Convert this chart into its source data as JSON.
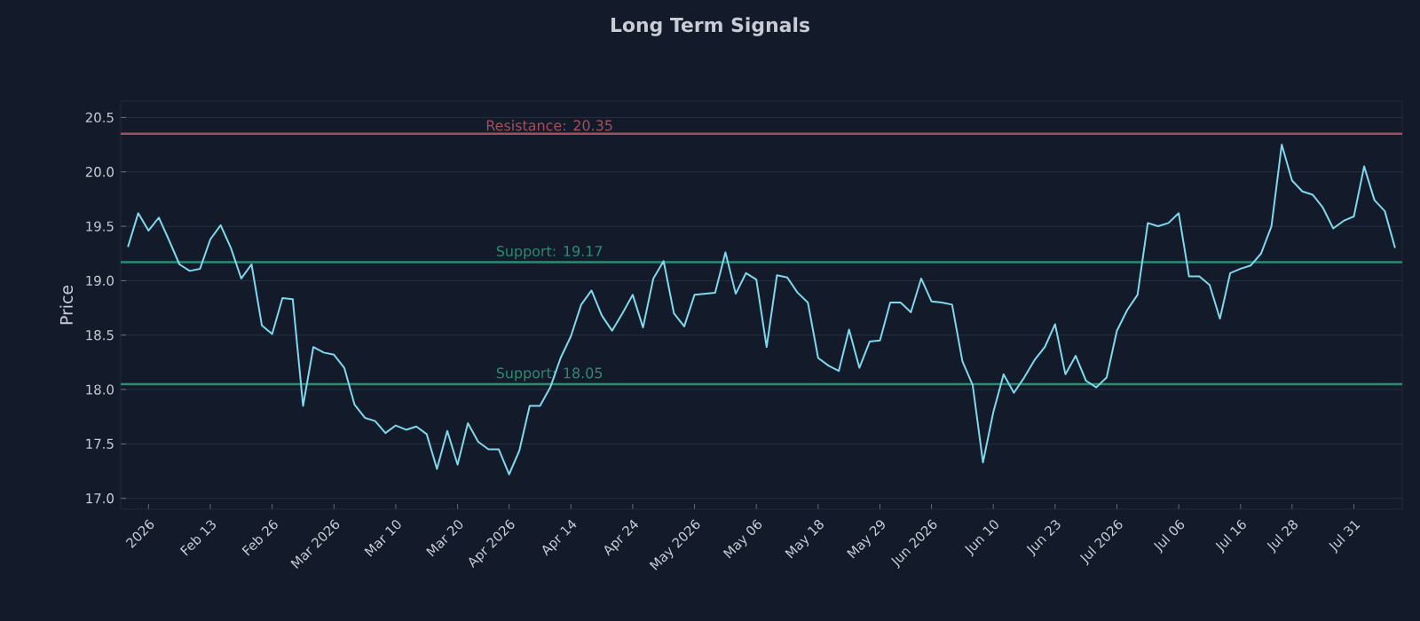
{
  "chart_data": {
    "type": "line",
    "title": "Long Term Signals",
    "ylabel": "Price",
    "categories": [
      null,
      null,
      "2026",
      null,
      null,
      null,
      null,
      null,
      "Feb 13",
      null,
      null,
      null,
      null,
      null,
      "Feb 26",
      null,
      null,
      null,
      null,
      null,
      "Mar 2026",
      null,
      null,
      null,
      null,
      null,
      "Mar 10",
      null,
      null,
      null,
      null,
      null,
      "Mar 20",
      null,
      null,
      null,
      null,
      "Apr 2026",
      null,
      null,
      null,
      null,
      null,
      "Apr 14",
      null,
      null,
      null,
      null,
      null,
      "Apr 24",
      null,
      null,
      null,
      null,
      null,
      "May 2026",
      null,
      null,
      null,
      null,
      null,
      "May 06",
      null,
      null,
      null,
      null,
      null,
      "May 18",
      null,
      null,
      null,
      null,
      null,
      "May 29",
      null,
      null,
      null,
      null,
      "Jun 2026",
      null,
      null,
      null,
      null,
      null,
      "Jun 10",
      null,
      null,
      null,
      null,
      null,
      "Jun 23",
      null,
      null,
      null,
      null,
      null,
      "Jul 2026",
      null,
      null,
      null,
      null,
      null,
      "Jul 06",
      null,
      null,
      null,
      null,
      null,
      "Jul 16",
      null,
      null,
      null,
      null,
      "Jul 28",
      null,
      null,
      null,
      null,
      null,
      "Jul 31",
      null,
      null,
      null,
      null
    ],
    "series": [
      {
        "color": "#7fd8ec",
        "values": [
          19.31,
          19.62,
          19.46,
          19.58,
          19.37,
          19.15,
          19.09,
          19.11,
          19.38,
          19.51,
          19.3,
          19.02,
          19.15,
          18.59,
          18.51,
          18.84,
          18.83,
          17.85,
          18.39,
          18.34,
          18.32,
          18.2,
          17.86,
          17.74,
          17.71,
          17.6,
          17.67,
          17.63,
          17.66,
          17.59,
          17.27,
          17.62,
          17.31,
          17.69,
          17.52,
          17.45,
          17.45,
          17.22,
          17.44,
          17.85,
          17.85,
          18.02,
          18.29,
          18.49,
          18.78,
          18.91,
          18.68,
          18.54,
          18.7,
          18.87,
          18.57,
          19.02,
          19.18,
          18.7,
          18.58,
          18.87,
          18.88,
          18.89,
          19.26,
          18.88,
          19.07,
          19.01,
          18.39,
          19.05,
          19.03,
          18.89,
          18.8,
          18.29,
          18.22,
          18.17,
          18.55,
          18.2,
          18.44,
          18.45,
          18.8,
          18.8,
          18.71,
          19.02,
          18.81,
          18.8,
          18.78,
          18.26,
          18.04,
          17.33,
          17.79,
          18.14,
          17.97,
          18.11,
          18.27,
          18.39,
          18.6,
          18.14,
          18.31,
          18.08,
          18.02,
          18.11,
          18.54,
          18.73,
          18.87,
          19.53,
          19.5,
          19.53,
          19.62,
          19.04,
          19.04,
          18.96,
          18.65,
          19.07,
          19.11,
          19.14,
          19.25,
          19.5,
          20.25,
          19.92,
          19.82,
          19.79,
          19.67,
          19.48,
          19.55,
          19.59,
          20.05,
          19.74,
          19.64,
          19.3
        ]
      }
    ],
    "ylim": [
      16.9,
      20.65
    ],
    "yticks": [
      {
        "value": 17,
        "label": "17.0"
      },
      17.5,
      {
        "value": 18,
        "label": "18.0"
      },
      18.5,
      {
        "value": 19,
        "label": "19.0"
      },
      19.5,
      {
        "value": 20,
        "label": "20.0"
      },
      20.5
    ],
    "ref_lines": [
      {
        "axis": "y",
        "value": 20.35,
        "label": "Resistance: 20.35",
        "color": "#a0525a"
      },
      {
        "axis": "y",
        "value": 19.17,
        "label": "Support: 19.17",
        "color": "#2e8b72"
      },
      {
        "axis": "y",
        "value": 18.05,
        "label": "Support: 18.05",
        "color": "#2e8b72"
      }
    ],
    "grid": "y",
    "marker": "none",
    "line_style": "solid"
  }
}
